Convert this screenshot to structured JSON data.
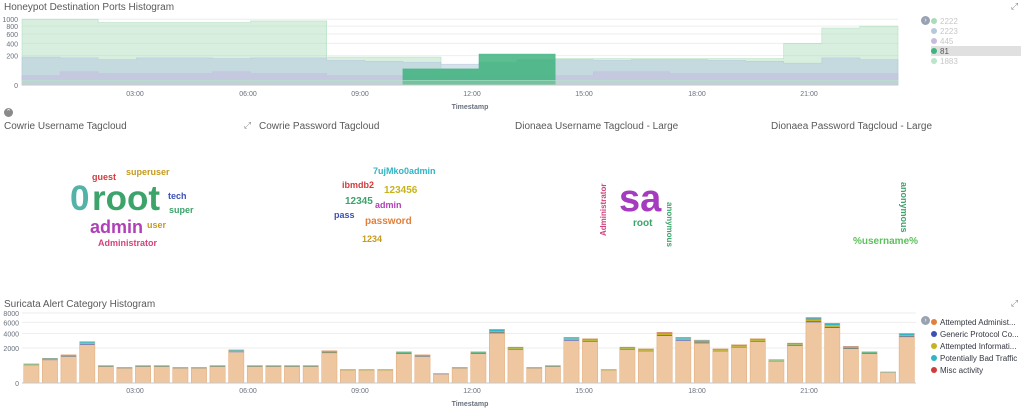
{
  "top_panel": {
    "title": "Honeypot Destination Ports Histogram",
    "xlabel": "Timestamp",
    "y_ticks": [
      "1000",
      "800",
      "600",
      "400",
      "200",
      "0"
    ],
    "x_ticks": [
      "03:00",
      "06:00",
      "09:00",
      "12:00",
      "15:00",
      "18:00",
      "21:00"
    ],
    "legend": [
      {
        "label": "2222",
        "color": "#a8dbb8",
        "selected": false
      },
      {
        "label": "2223",
        "color": "#b5c8dc",
        "selected": false
      },
      {
        "label": "445",
        "color": "#c6bce0",
        "selected": false
      },
      {
        "label": "81",
        "color": "#3fb37f",
        "selected": true
      },
      {
        "label": "1883",
        "color": "#b7e6c9",
        "selected": false
      }
    ]
  },
  "cowrie_user": {
    "title": "Cowrie Username Tagcloud",
    "words": [
      {
        "text": "guest",
        "color": "#d23b3b"
      },
      {
        "text": "superuser",
        "color": "#c79a1d"
      },
      {
        "text": "0",
        "color": "#54b3a8"
      },
      {
        "text": "root",
        "color": "#3ca36b"
      },
      {
        "text": "tech",
        "color": "#3a51b7"
      },
      {
        "text": "super",
        "color": "#3ca36b"
      },
      {
        "text": "admin",
        "color": "#b040b7"
      },
      {
        "text": "user",
        "color": "#c79a1d"
      },
      {
        "text": "Administrator",
        "color": "#d2447e"
      }
    ]
  },
  "cowrie_pass": {
    "title": "Cowrie Password Tagcloud",
    "words": [
      {
        "text": "7ujMko0admin",
        "color": "#2fb5c4"
      },
      {
        "text": "ibmdb2",
        "color": "#d23b3b"
      },
      {
        "text": "123456",
        "color": "#c7b31d"
      },
      {
        "text": "12345",
        "color": "#3ca36b"
      },
      {
        "text": "admin",
        "color": "#b040b7"
      },
      {
        "text": "pass",
        "color": "#3a51b7"
      },
      {
        "text": "password",
        "color": "#e0803c"
      },
      {
        "text": "1234",
        "color": "#c79a1d"
      }
    ]
  },
  "dionaea_user": {
    "title": "Dionaea Username Tagcloud - Large",
    "words": [
      {
        "text": "Administrator",
        "color": "#d2447e"
      },
      {
        "text": "sa",
        "color": "#a53bbf"
      },
      {
        "text": "root",
        "color": "#3ca36b"
      },
      {
        "text": "anonymous",
        "color": "#3ca36b"
      }
    ]
  },
  "dionaea_pass": {
    "title": "Dionaea Password Tagcloud - Large",
    "words": [
      {
        "text": "anonymous",
        "color": "#3ca36b"
      },
      {
        "text": "%username%",
        "color": "#5cc05c"
      }
    ]
  },
  "bottom_panel": {
    "title": "Suricata Alert Category Histogram",
    "xlabel": "Timestamp",
    "y_ticks": [
      "8000",
      "6000",
      "4000",
      "2000",
      "0"
    ],
    "x_ticks": [
      "03:00",
      "06:00",
      "09:00",
      "12:00",
      "15:00",
      "18:00",
      "21:00"
    ],
    "legend": [
      {
        "label": "Attempted Administ...",
        "color": "#e0803c"
      },
      {
        "label": "Generic Protocol Co...",
        "color": "#3a51b7"
      },
      {
        "label": "Attempted Informati...",
        "color": "#c7b31d"
      },
      {
        "label": "Potentially Bad Traffic",
        "color": "#2fb5c4"
      },
      {
        "label": "Misc activity",
        "color": "#d23b3b"
      }
    ]
  },
  "chart_data": [
    {
      "type": "area",
      "ylabel": "",
      "xlabel": "Timestamp",
      "ylim": [
        0,
        1100
      ],
      "scale": "sqrt",
      "x": [
        "01:00",
        "02:00",
        "03:00",
        "04:00",
        "05:00",
        "06:00",
        "07:00",
        "08:00",
        "09:00",
        "10:00",
        "10:30",
        "11:00",
        "12:00",
        "13:00",
        "14:00",
        "15:00",
        "16:00",
        "17:00",
        "18:00",
        "19:00",
        "20:00",
        "21:00",
        "22:00",
        "22:30"
      ],
      "series": [
        {
          "name": "2222",
          "values": [
            1000,
            1000,
            900,
            900,
            900,
            900,
            950,
            950,
            180,
            180,
            180,
            60,
            120,
            140,
            160,
            160,
            160,
            160,
            160,
            160,
            400,
            750,
            800,
            20
          ]
        },
        {
          "name": "2223",
          "values": [
            180,
            170,
            150,
            170,
            170,
            160,
            170,
            170,
            140,
            130,
            120,
            100,
            110,
            150,
            150,
            140,
            150,
            150,
            140,
            130,
            110,
            170,
            150,
            10
          ]
        },
        {
          "name": "445",
          "values": [
            20,
            40,
            30,
            30,
            30,
            40,
            30,
            30,
            20,
            20,
            20,
            20,
            20,
            20,
            20,
            40,
            40,
            30,
            30,
            30,
            30,
            30,
            30,
            5
          ]
        },
        {
          "name": "81",
          "values": [
            0,
            0,
            0,
            0,
            0,
            0,
            0,
            0,
            0,
            0,
            60,
            60,
            220,
            220,
            0,
            0,
            0,
            0,
            0,
            0,
            0,
            0,
            0,
            0
          ]
        },
        {
          "name": "1883",
          "values": [
            5,
            5,
            5,
            5,
            5,
            5,
            5,
            5,
            5,
            5,
            5,
            5,
            5,
            5,
            5,
            5,
            5,
            5,
            5,
            5,
            5,
            5,
            5,
            5
          ]
        }
      ]
    },
    {
      "type": "bar",
      "xlabel": "Timestamp",
      "ylim": [
        0,
        8000
      ],
      "scale": "sqrt",
      "stacked": true,
      "values": [
        600,
        1000,
        1300,
        2800,
        500,
        400,
        500,
        500,
        400,
        400,
        500,
        1800,
        500,
        500,
        500,
        500,
        1700,
        300,
        300,
        300,
        1600,
        1300,
        150,
        400,
        1600,
        4700,
        2100,
        400,
        500,
        3400,
        3200,
        300,
        2100,
        1900,
        4200,
        3400,
        3000,
        1900,
        2400,
        3200,
        900,
        2600,
        7000,
        5800,
        2200,
        1600,
        200,
        4000
      ],
      "series_shares": [
        {
          "name": "Attempted Administ...",
          "share": 0.86
        },
        {
          "name": "Generic Protocol Co...",
          "share": 0.03
        },
        {
          "name": "Attempted Informati...",
          "share": 0.05
        },
        {
          "name": "Potentially Bad Traffic",
          "share": 0.04
        },
        {
          "name": "Misc activity",
          "share": 0.02
        }
      ]
    }
  ]
}
